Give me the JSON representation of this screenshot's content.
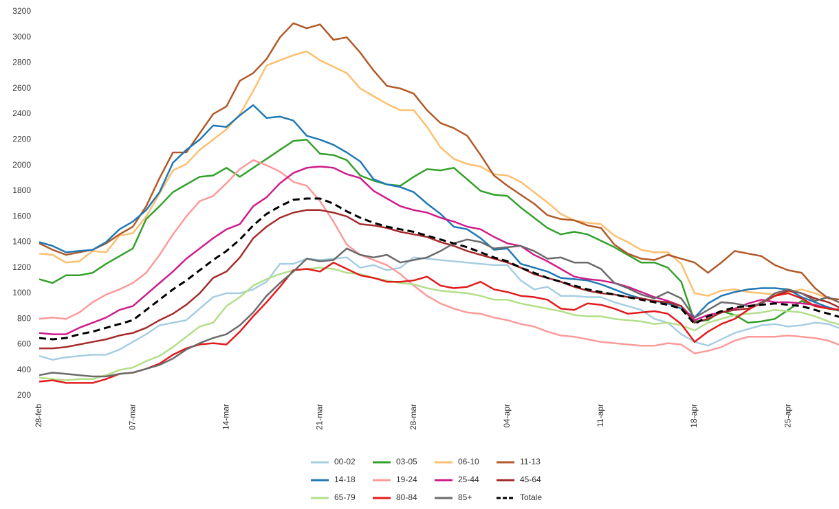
{
  "chart_data": {
    "type": "line",
    "categories": [
      "28-feb",
      null,
      null,
      null,
      null,
      null,
      null,
      "07-mar",
      null,
      null,
      null,
      null,
      null,
      null,
      "14-mar",
      null,
      null,
      null,
      null,
      null,
      null,
      "21-mar",
      null,
      null,
      null,
      null,
      null,
      null,
      "28-mar",
      null,
      null,
      null,
      null,
      null,
      null,
      "04-apr",
      null,
      null,
      null,
      null,
      null,
      null,
      "11-apr",
      null,
      null,
      null,
      null,
      null,
      null,
      "18-apr",
      null,
      null,
      null,
      null,
      null,
      null,
      "25-apr",
      null,
      null,
      null,
      null
    ],
    "ylim": [
      200,
      3200
    ],
    "yticks": [
      200,
      400,
      600,
      800,
      1000,
      1200,
      1400,
      1600,
      1800,
      2000,
      2200,
      2400,
      2600,
      2800,
      3000,
      3200
    ],
    "grid": false,
    "series": [
      {
        "name": "00-02",
        "color": "#a6cee3",
        "values": [
          510,
          480,
          500,
          510,
          520,
          520,
          560,
          620,
          680,
          750,
          770,
          790,
          880,
          970,
          1000,
          1000,
          1030,
          1090,
          1230,
          1230,
          1270,
          1260,
          1270,
          1280,
          1200,
          1220,
          1180,
          1200,
          1280,
          1270,
          1260,
          1250,
          1240,
          1230,
          1220,
          1220,
          1100,
          1030,
          1050,
          980,
          980,
          970,
          970,
          930,
          900,
          870,
          800,
          770,
          680,
          620,
          590,
          640,
          690,
          720,
          750,
          760,
          740,
          750,
          770,
          760,
          720
        ]
      },
      {
        "name": "03-05",
        "color": "#33a02c",
        "values": [
          1110,
          1080,
          1140,
          1140,
          1160,
          1230,
          1290,
          1350,
          1580,
          1680,
          1790,
          1850,
          1910,
          1920,
          1980,
          1910,
          1980,
          2050,
          2120,
          2190,
          2200,
          2090,
          2080,
          2040,
          1920,
          1880,
          1850,
          1840,
          1910,
          1970,
          1960,
          1980,
          1890,
          1800,
          1770,
          1760,
          1670,
          1590,
          1510,
          1460,
          1480,
          1460,
          1410,
          1360,
          1300,
          1240,
          1240,
          1200,
          1090,
          780,
          790,
          860,
          830,
          770,
          780,
          800,
          870,
          940,
          900,
          880,
          860
        ]
      },
      {
        "name": "06-10",
        "color": "#fdbf6f",
        "values": [
          1310,
          1300,
          1240,
          1250,
          1330,
          1320,
          1450,
          1470,
          1600,
          1780,
          1960,
          2010,
          2120,
          2200,
          2280,
          2400,
          2580,
          2780,
          2820,
          2860,
          2890,
          2820,
          2770,
          2720,
          2600,
          2540,
          2480,
          2430,
          2430,
          2300,
          2140,
          2050,
          2010,
          1990,
          1930,
          1920,
          1870,
          1790,
          1710,
          1620,
          1570,
          1550,
          1540,
          1450,
          1400,
          1340,
          1320,
          1320,
          1230,
          1000,
          980,
          1020,
          1030,
          1010,
          1000,
          990,
          1010,
          1030,
          1000,
          960,
          920
        ]
      },
      {
        "name": "11-13",
        "color": "#b15928",
        "values": [
          1390,
          1340,
          1300,
          1320,
          1340,
          1390,
          1460,
          1520,
          1680,
          1900,
          2100,
          2100,
          2250,
          2400,
          2460,
          2660,
          2720,
          2830,
          3000,
          3110,
          3070,
          3100,
          2980,
          3000,
          2880,
          2740,
          2620,
          2600,
          2560,
          2430,
          2330,
          2290,
          2230,
          2080,
          1920,
          1840,
          1770,
          1700,
          1610,
          1580,
          1570,
          1530,
          1510,
          1380,
          1310,
          1270,
          1260,
          1300,
          1270,
          1240,
          1160,
          1240,
          1330,
          1310,
          1290,
          1220,
          1180,
          1160,
          1040,
          960,
          950
        ]
      },
      {
        "name": "14-18",
        "color": "#1f78b4",
        "values": [
          1400,
          1370,
          1320,
          1330,
          1340,
          1400,
          1500,
          1560,
          1650,
          1790,
          2020,
          2120,
          2200,
          2310,
          2300,
          2390,
          2470,
          2370,
          2380,
          2350,
          2230,
          2200,
          2160,
          2100,
          2030,
          1890,
          1850,
          1830,
          1790,
          1700,
          1620,
          1520,
          1500,
          1430,
          1340,
          1350,
          1230,
          1200,
          1170,
          1120,
          1110,
          1100,
          1070,
          1030,
          990,
          960,
          940,
          920,
          880,
          810,
          920,
          980,
          1010,
          1030,
          1040,
          1040,
          1030,
          970,
          930,
          890,
          860
        ]
      },
      {
        "name": "19-24",
        "color": "#fb9a99",
        "values": [
          800,
          810,
          800,
          850,
          930,
          990,
          1030,
          1080,
          1160,
          1300,
          1460,
          1600,
          1720,
          1760,
          1860,
          1970,
          2040,
          2000,
          1950,
          1870,
          1840,
          1720,
          1560,
          1380,
          1300,
          1260,
          1220,
          1150,
          1060,
          980,
          920,
          880,
          850,
          840,
          810,
          790,
          760,
          740,
          700,
          670,
          660,
          640,
          620,
          610,
          600,
          590,
          590,
          610,
          600,
          530,
          550,
          580,
          630,
          660,
          660,
          660,
          670,
          660,
          650,
          630,
          590
        ]
      },
      {
        "name": "25-44",
        "color": "#d01c8b",
        "values": [
          690,
          680,
          680,
          730,
          770,
          810,
          870,
          900,
          990,
          1080,
          1170,
          1270,
          1350,
          1430,
          1500,
          1540,
          1680,
          1750,
          1860,
          1940,
          1980,
          1990,
          1980,
          1930,
          1900,
          1800,
          1740,
          1680,
          1650,
          1630,
          1590,
          1560,
          1520,
          1500,
          1440,
          1390,
          1370,
          1300,
          1250,
          1190,
          1130,
          1110,
          1100,
          1080,
          1050,
          1010,
          970,
          940,
          900,
          790,
          830,
          850,
          880,
          920,
          950,
          930,
          930,
          920,
          910,
          880,
          870
        ]
      },
      {
        "name": "45-64",
        "color": "#a52a2a",
        "values": [
          570,
          570,
          580,
          600,
          620,
          640,
          670,
          690,
          730,
          790,
          840,
          910,
          1000,
          1120,
          1170,
          1280,
          1430,
          1520,
          1590,
          1630,
          1650,
          1650,
          1630,
          1600,
          1540,
          1530,
          1510,
          1480,
          1460,
          1440,
          1400,
          1370,
          1330,
          1300,
          1270,
          1240,
          1200,
          1150,
          1120,
          1090,
          1050,
          1020,
          1000,
          990,
          970,
          960,
          940,
          930,
          900,
          770,
          800,
          850,
          870,
          880,
          920,
          980,
          1020,
          1000,
          960,
          930,
          880
        ]
      },
      {
        "name": "65-79",
        "color": "#b2df8a",
        "values": [
          340,
          330,
          320,
          330,
          330,
          360,
          400,
          420,
          470,
          510,
          580,
          660,
          740,
          770,
          900,
          970,
          1060,
          1110,
          1150,
          1180,
          1190,
          1200,
          1190,
          1160,
          1150,
          1120,
          1100,
          1080,
          1070,
          1040,
          1020,
          1010,
          1000,
          980,
          950,
          950,
          920,
          900,
          880,
          860,
          830,
          820,
          820,
          800,
          790,
          780,
          760,
          770,
          750,
          710,
          770,
          800,
          830,
          840,
          850,
          870,
          860,
          850,
          820,
          780,
          750
        ]
      },
      {
        "name": "80-84",
        "color": "#e31a1c",
        "values": [
          310,
          320,
          300,
          300,
          300,
          330,
          370,
          380,
          410,
          450,
          520,
          570,
          600,
          610,
          600,
          700,
          820,
          930,
          1050,
          1180,
          1190,
          1170,
          1240,
          1190,
          1140,
          1120,
          1090,
          1090,
          1100,
          1130,
          1060,
          1040,
          1050,
          1090,
          1030,
          1010,
          980,
          970,
          950,
          880,
          870,
          920,
          910,
          880,
          840,
          850,
          860,
          840,
          760,
          620,
          700,
          760,
          800,
          870,
          930,
          980,
          1000,
          960,
          900,
          880,
          870
        ]
      },
      {
        "name": "85+",
        "color": "#6a6a6a",
        "values": [
          360,
          380,
          370,
          360,
          350,
          350,
          370,
          380,
          410,
          440,
          490,
          560,
          610,
          650,
          680,
          750,
          850,
          980,
          1080,
          1170,
          1270,
          1250,
          1260,
          1350,
          1300,
          1280,
          1300,
          1240,
          1260,
          1280,
          1330,
          1390,
          1420,
          1400,
          1350,
          1360,
          1370,
          1330,
          1270,
          1280,
          1240,
          1240,
          1190,
          1080,
          1040,
          990,
          960,
          1010,
          960,
          810,
          870,
          930,
          920,
          900,
          920,
          1000,
          1030,
          1000,
          940,
          970,
          920
        ]
      },
      {
        "name": "Totale",
        "color": "#000000",
        "dashed": true,
        "values": [
          650,
          640,
          650,
          680,
          700,
          730,
          760,
          790,
          870,
          950,
          1030,
          1100,
          1180,
          1260,
          1330,
          1420,
          1530,
          1620,
          1680,
          1730,
          1740,
          1740,
          1700,
          1640,
          1590,
          1550,
          1520,
          1500,
          1480,
          1450,
          1420,
          1390,
          1360,
          1320,
          1280,
          1250,
          1200,
          1160,
          1120,
          1090,
          1060,
          1030,
          1010,
          990,
          970,
          950,
          930,
          910,
          880,
          760,
          820,
          860,
          890,
          900,
          910,
          920,
          910,
          900,
          870,
          840,
          810
        ]
      }
    ]
  }
}
